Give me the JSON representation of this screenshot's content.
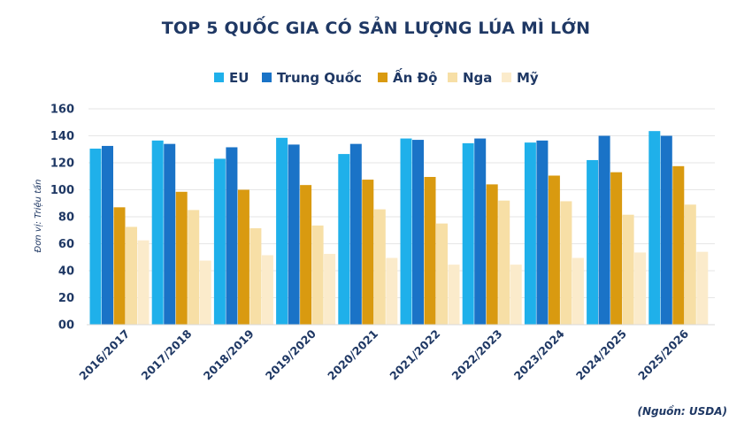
{
  "chart_data": {
    "type": "bar",
    "title": "TOP 5 QUỐC GIA CÓ SẢN LƯỢNG LÚA MÌ LỚN",
    "ylabel": "Đơn vị: Triệu tấn",
    "xlabel": "",
    "source": "(Nguồn: USDA)",
    "ylim": [
      0,
      160
    ],
    "yticks": [
      0,
      20,
      40,
      60,
      80,
      100,
      120,
      140,
      160
    ],
    "ytick_labels": [
      "00",
      "20",
      "40",
      "60",
      "80",
      "100",
      "120",
      "140",
      "160"
    ],
    "grid": true,
    "legend_position": "top-center",
    "categories": [
      "2016/2017",
      "2017/2018",
      "2018/2019",
      "2019/2020",
      "2020/2021",
      "2021/2022",
      "2022/2023",
      "2023/2024",
      "2024/2025",
      "2025/2026"
    ],
    "series": [
      {
        "name": "EU",
        "color": "#1fb0ea",
        "values": [
          130.5,
          136.5,
          123,
          138.5,
          126.5,
          138,
          134.5,
          135,
          122,
          143.5
        ]
      },
      {
        "name": "Trung Quốc",
        "color": "#1a73c7",
        "values": [
          132.5,
          134,
          131.5,
          133.5,
          134,
          137,
          138,
          136.5,
          140,
          140
        ]
      },
      {
        "name": "Ấn Độ",
        "color": "#d99a10",
        "values": [
          87,
          98.5,
          100,
          103.5,
          107.5,
          109.5,
          104,
          110.5,
          113,
          117.5
        ]
      },
      {
        "name": "Nga",
        "color": "#f7dfa6",
        "values": [
          72.5,
          85,
          71.5,
          73.5,
          85.5,
          75,
          92,
          91.5,
          81.5,
          89
        ]
      },
      {
        "name": "Mỹ",
        "color": "#fbebcb",
        "values": [
          62.5,
          47.5,
          51.5,
          52.5,
          49.5,
          44.5,
          44.5,
          49.5,
          53.5,
          54
        ]
      }
    ]
  }
}
